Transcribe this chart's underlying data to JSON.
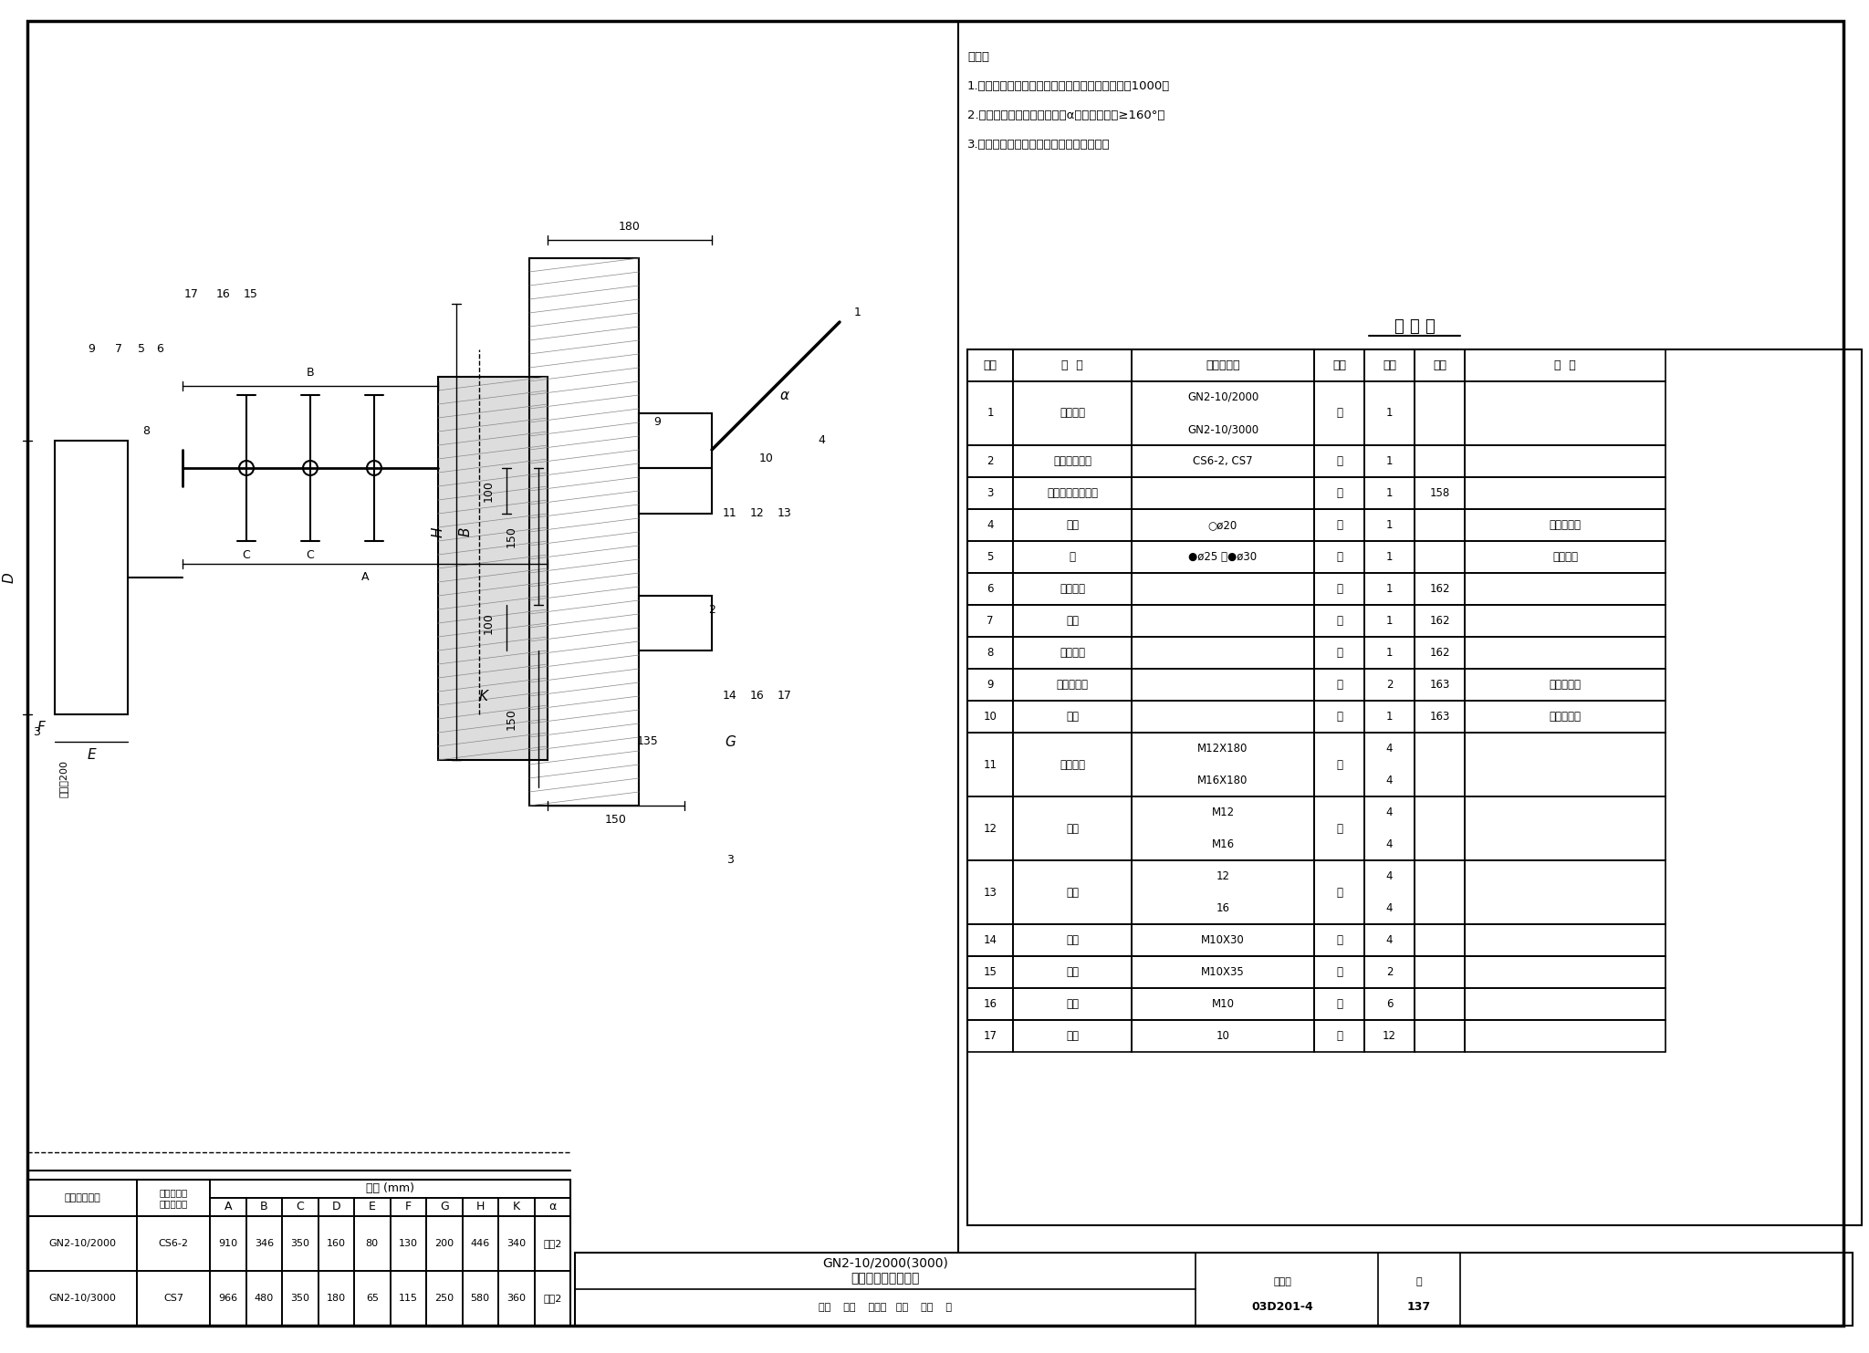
{
  "title": "GN2-10/2000(3000)\n隔离开关在墙上安装",
  "atlas_no": "03D201-4",
  "page": "137",
  "background": "#ffffff",
  "notes": [
    "说明：",
    "1.轴延长需增加轴承时，两个轴承间的距离应小于1000。",
    "2.隔离开关刀片打开时，角度α应使开口角度≥160°。",
    "3.操动机构也可以安装在隔离开关的左侧。"
  ],
  "table_title": "明 细 表",
  "table_headers": [
    "序号",
    "名  称",
    "型号及规格",
    "单位",
    "数量",
    "页次",
    "备  注"
  ],
  "table_rows": [
    [
      "1",
      "隔离开关",
      "GN2-10/2000\nGN2-10/3000",
      "台",
      "1",
      "",
      ""
    ],
    [
      "2",
      "手力操动机构",
      "CS6-2, CS7",
      "台",
      "1",
      "",
      ""
    ],
    [
      "3",
      "操动机构安装支架",
      "",
      "个",
      "1",
      "158",
      ""
    ],
    [
      "4",
      "拉杆",
      "○ø20",
      "根",
      "1",
      "",
      "长度由工程"
    ],
    [
      "5",
      "轴",
      "●ø25 或●ø30",
      "根",
      "1",
      "",
      "设计决定"
    ],
    [
      "6",
      "轴连接套",
      "",
      "根",
      "1",
      "162",
      ""
    ],
    [
      "7",
      "轴承",
      "",
      "根",
      "1",
      "162",
      ""
    ],
    [
      "8",
      "轴承支架",
      "",
      "根",
      "1",
      "162",
      ""
    ],
    [
      "9",
      "直叉型接头",
      "",
      "个",
      "2",
      "163",
      "可随隔离开"
    ],
    [
      "10",
      "轴臂",
      "",
      "个",
      "1",
      "163",
      "关成套供应"
    ],
    [
      "11",
      "开尾螺栓",
      "M12X180\nM16X180",
      "个",
      "4\n4",
      "",
      ""
    ],
    [
      "12",
      "螺母",
      "M12\nM16",
      "个",
      "4\n4",
      "",
      ""
    ],
    [
      "13",
      "垫圈",
      "12\n16",
      "个",
      "4\n4",
      "",
      ""
    ],
    [
      "14",
      "螺栓",
      "M10X30",
      "个",
      "4",
      "",
      ""
    ],
    [
      "15",
      "螺栓",
      "M10X35",
      "个",
      "2",
      "",
      ""
    ],
    [
      "16",
      "螺母",
      "M10",
      "个",
      "6",
      "",
      ""
    ],
    [
      "17",
      "垫圈",
      "10",
      "个",
      "12",
      "",
      ""
    ]
  ],
  "dim_table_title": "尺寸 (mm)",
  "dim_headers": [
    "隔离开关型号",
    "配用手力操\n动机构型号",
    "A",
    "B",
    "C",
    "D",
    "E",
    "F",
    "G",
    "H",
    "K",
    "α"
  ],
  "dim_rows": [
    [
      "GN2-10/2000",
      "CS6-2",
      "910",
      "346",
      "350",
      "160",
      "80",
      "130",
      "200",
      "446",
      "340",
      "说明2"
    ],
    [
      "GN2-10/3000",
      "CS7",
      "966",
      "480",
      "350",
      "180",
      "65",
      "115",
      "250",
      "580",
      "360",
      "说明2"
    ]
  ]
}
